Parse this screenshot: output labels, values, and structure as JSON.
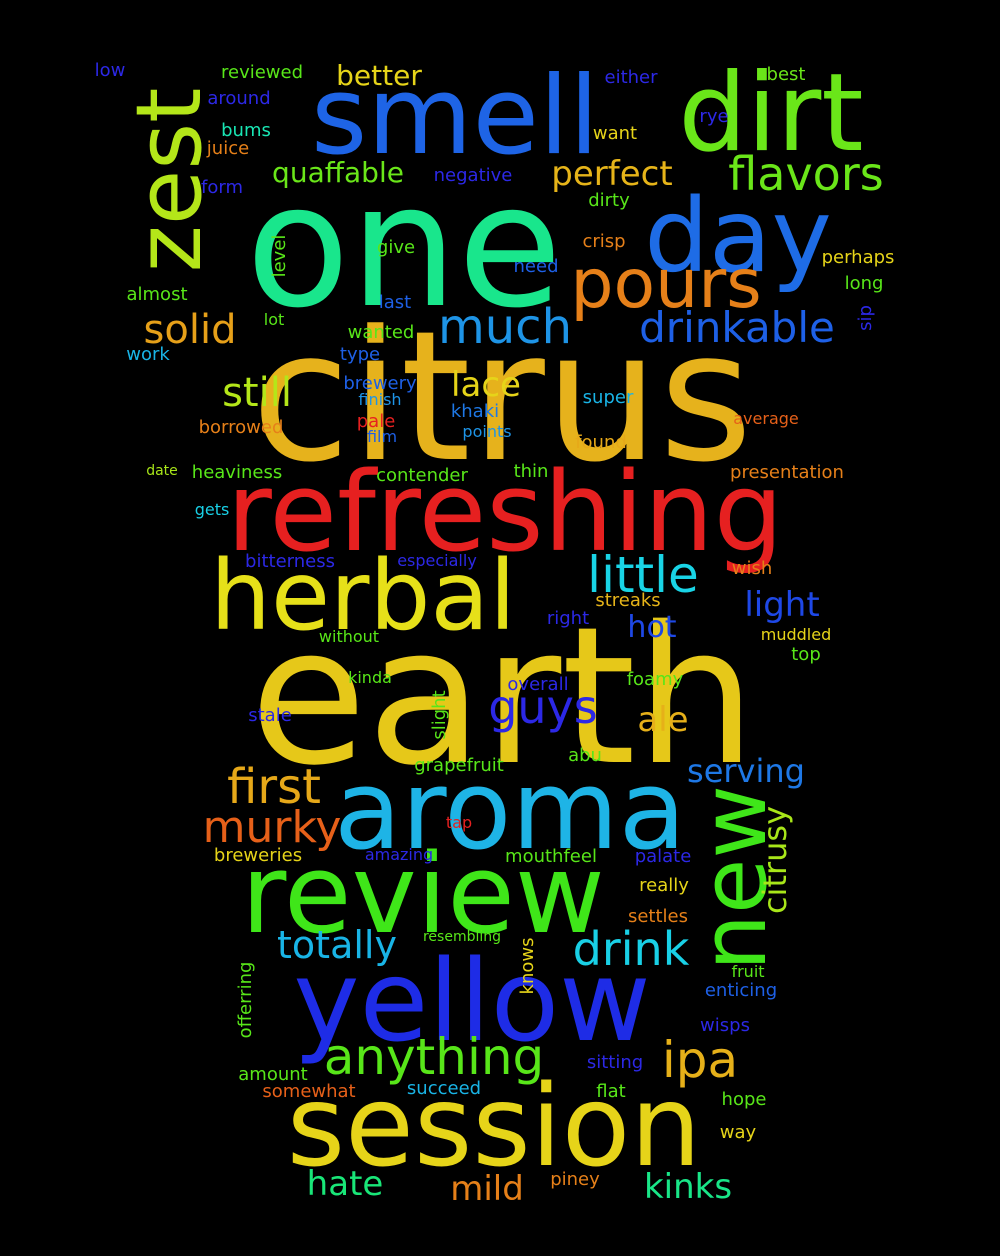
{
  "words": [
    {
      "text": "earth",
      "color": "#e6c819"
    },
    {
      "text": "citrus",
      "color": "#e6b21c"
    },
    {
      "text": "one",
      "color": "#19e68c"
    },
    {
      "text": "refreshing",
      "color": "#e62020"
    },
    {
      "text": "session",
      "color": "#e6d419"
    },
    {
      "text": "yellow",
      "color": "#1e2ce6"
    },
    {
      "text": "aroma",
      "color": "#1eb4e6"
    },
    {
      "text": "review",
      "color": "#3fe619"
    },
    {
      "text": "smell",
      "color": "#1e64e6"
    },
    {
      "text": "dirt",
      "color": "#6ae619"
    },
    {
      "text": "herbal",
      "color": "#e6e019"
    },
    {
      "text": "day",
      "color": "#1e6ce6"
    },
    {
      "text": "zest",
      "color": "#b4e619"
    },
    {
      "text": "new",
      "color": "#3fe619"
    },
    {
      "text": "pours",
      "color": "#e68019"
    },
    {
      "text": "anything",
      "color": "#58e619"
    },
    {
      "text": "little",
      "color": "#19d4e6"
    },
    {
      "text": "first",
      "color": "#e6a819"
    },
    {
      "text": "drink",
      "color": "#19d0e6"
    },
    {
      "text": "ipa",
      "color": "#e6b019"
    },
    {
      "text": "flavors",
      "color": "#6ae619"
    },
    {
      "text": "much",
      "color": "#1e94e6"
    },
    {
      "text": "drinkable",
      "color": "#1e60e6"
    },
    {
      "text": "murky",
      "color": "#e66019"
    },
    {
      "text": "guys",
      "color": "#2c28e6"
    },
    {
      "text": "solid",
      "color": "#e6a019"
    },
    {
      "text": "still",
      "color": "#b4e619"
    },
    {
      "text": "totally",
      "color": "#19b4e6"
    },
    {
      "text": "perfect",
      "color": "#e6b419"
    },
    {
      "text": "lace",
      "color": "#e6d419"
    },
    {
      "text": "light",
      "color": "#1e48e6"
    },
    {
      "text": "serving",
      "color": "#1e78e6"
    },
    {
      "text": "citrusy",
      "color": "#a8e619"
    },
    {
      "text": "kinks",
      "color": "#19e688"
    },
    {
      "text": "hate",
      "color": "#19e678"
    },
    {
      "text": "mild",
      "color": "#e68019"
    },
    {
      "text": "ale",
      "color": "#e6b019"
    },
    {
      "text": "hot",
      "color": "#1e48e6"
    },
    {
      "text": "quaffable",
      "color": "#6ae619"
    },
    {
      "text": "better",
      "color": "#e6d419"
    },
    {
      "text": "low",
      "color": "#2c28e6"
    },
    {
      "text": "reviewed",
      "color": "#58e619"
    },
    {
      "text": "around",
      "color": "#2c28e6"
    },
    {
      "text": "bums",
      "color": "#19e6b4"
    },
    {
      "text": "juice",
      "color": "#e68019"
    },
    {
      "text": "form",
      "color": "#2c28e6"
    },
    {
      "text": "negative",
      "color": "#2c28e6"
    },
    {
      "text": "either",
      "color": "#2c28e6"
    },
    {
      "text": "best",
      "color": "#6ae619"
    },
    {
      "text": "rye",
      "color": "#2c28e6"
    },
    {
      "text": "want",
      "color": "#e6d419"
    },
    {
      "text": "dirty",
      "color": "#58e619"
    },
    {
      "text": "crisp",
      "color": "#e68019"
    },
    {
      "text": "perhaps",
      "color": "#e6d419"
    },
    {
      "text": "long",
      "color": "#58e619"
    },
    {
      "text": "sip",
      "color": "#2c28e6"
    },
    {
      "text": "need",
      "color": "#1e60e6"
    },
    {
      "text": "last",
      "color": "#1e60e6"
    },
    {
      "text": "give",
      "color": "#58e619"
    },
    {
      "text": "level",
      "color": "#58e619"
    },
    {
      "text": "almost",
      "color": "#58e619"
    },
    {
      "text": "lot",
      "color": "#58e619"
    },
    {
      "text": "wanted",
      "color": "#58e619"
    },
    {
      "text": "work",
      "color": "#19b4e6"
    },
    {
      "text": "type",
      "color": "#1e60e6"
    },
    {
      "text": "brewery",
      "color": "#1e60e6"
    },
    {
      "text": "finish",
      "color": "#1e94e6"
    },
    {
      "text": "pale",
      "color": "#e62020"
    },
    {
      "text": "khaki",
      "color": "#1e78e6"
    },
    {
      "text": "super",
      "color": "#19b4e6"
    },
    {
      "text": "average",
      "color": "#e66019"
    },
    {
      "text": "borrowed",
      "color": "#e68019"
    },
    {
      "text": "film",
      "color": "#1e60e6"
    },
    {
      "text": "points",
      "color": "#1e94e6"
    },
    {
      "text": "found",
      "color": "#e6a819"
    },
    {
      "text": "date",
      "color": "#a8e619"
    },
    {
      "text": "heaviness",
      "color": "#58e619"
    },
    {
      "text": "contender",
      "color": "#58e619"
    },
    {
      "text": "thin",
      "color": "#58e619"
    },
    {
      "text": "presentation",
      "color": "#e68019"
    },
    {
      "text": "gets",
      "color": "#19d0e6"
    },
    {
      "text": "bitterness",
      "color": "#2c28e6"
    },
    {
      "text": "especially",
      "color": "#2c28e6"
    },
    {
      "text": "wish",
      "color": "#e68019"
    },
    {
      "text": "streaks",
      "color": "#e6b419"
    },
    {
      "text": "right",
      "color": "#2c28e6"
    },
    {
      "text": "without",
      "color": "#58e619"
    },
    {
      "text": "muddled",
      "color": "#e6d419"
    },
    {
      "text": "top",
      "color": "#58e619"
    },
    {
      "text": "kinda",
      "color": "#58e619"
    },
    {
      "text": "overall",
      "color": "#2c28e6"
    },
    {
      "text": "foamy",
      "color": "#58e619"
    },
    {
      "text": "stale",
      "color": "#2c28e6"
    },
    {
      "text": "slight",
      "color": "#58e619"
    },
    {
      "text": "abu",
      "color": "#58e619"
    },
    {
      "text": "grapefruit",
      "color": "#58e619"
    },
    {
      "text": "tap",
      "color": "#e62020"
    },
    {
      "text": "breweries",
      "color": "#e6d419"
    },
    {
      "text": "amazing",
      "color": "#2c28e6"
    },
    {
      "text": "mouthfeel",
      "color": "#58e619"
    },
    {
      "text": "palate",
      "color": "#2c28e6"
    },
    {
      "text": "really",
      "color": "#e6d419"
    },
    {
      "text": "settles",
      "color": "#e68019"
    },
    {
      "text": "resembling",
      "color": "#58e619"
    },
    {
      "text": "knows",
      "color": "#e6d419"
    },
    {
      "text": "offerring",
      "color": "#58e619"
    },
    {
      "text": "fruit",
      "color": "#58e619"
    },
    {
      "text": "enticing",
      "color": "#1e60e6"
    },
    {
      "text": "wisps",
      "color": "#2c28e6"
    },
    {
      "text": "amount",
      "color": "#58e619"
    },
    {
      "text": "sitting",
      "color": "#2c28e6"
    },
    {
      "text": "somewhat",
      "color": "#e66019"
    },
    {
      "text": "succeed",
      "color": "#19b4e6"
    },
    {
      "text": "flat",
      "color": "#58e619"
    },
    {
      "text": "hope",
      "color": "#58e619"
    },
    {
      "text": "way",
      "color": "#e6d419"
    },
    {
      "text": "piney",
      "color": "#e68019"
    }
  ]
}
